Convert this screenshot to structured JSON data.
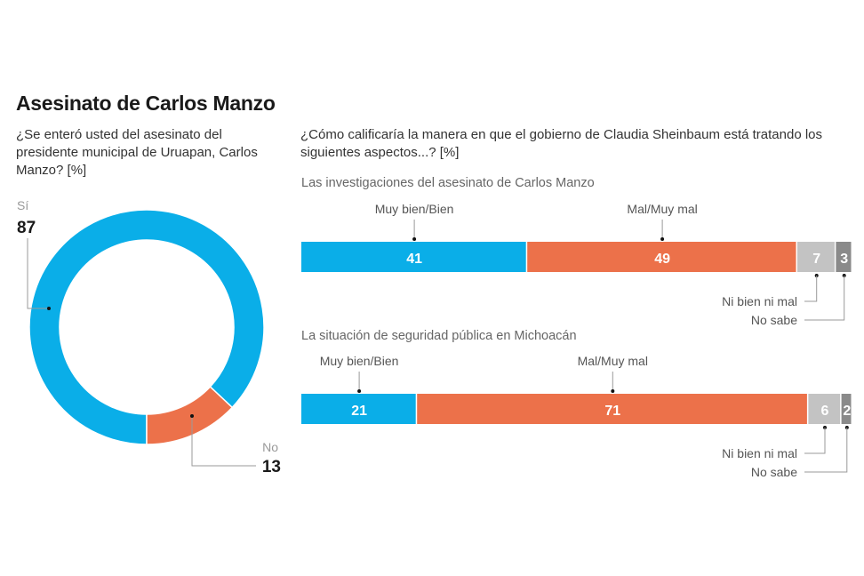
{
  "title": "Asesinato de Carlos Manzo",
  "colors": {
    "positive": "#0aaee8",
    "negative": "#ec714a",
    "neutral": "#c3c3c3",
    "unknown": "#8a8a8a",
    "leader": "#9a9a9a"
  },
  "chart_data": [
    {
      "type": "pie",
      "subtype": "donut",
      "question": "¿Se enteró usted del asesinato del presidente municipal de Uruapan, Carlos Manzo? [%]",
      "categories": [
        "Sí",
        "No"
      ],
      "values": [
        87,
        13
      ],
      "colors": [
        "#0aaee8",
        "#ec714a"
      ]
    },
    {
      "type": "bar",
      "subtype": "stacked-horizontal",
      "question": "¿Cómo calificaría la manera en que el gobierno de Claudia Sheinbaum está tratando los siguientes aspectos...? [%]",
      "categories": [
        "Muy bien/Bien",
        "Mal/Muy mal",
        "Ni bien ni mal",
        "No sabe"
      ],
      "colors": [
        "#0aaee8",
        "#ec714a",
        "#c3c3c3",
        "#8a8a8a"
      ],
      "rows": [
        {
          "label": "Las investigaciones del asesinato de Carlos Manzo",
          "values": [
            41,
            49,
            7,
            3
          ]
        },
        {
          "label": "La situación de seguridad pública en Michoacán",
          "values": [
            21,
            71,
            6,
            2
          ]
        }
      ]
    }
  ]
}
